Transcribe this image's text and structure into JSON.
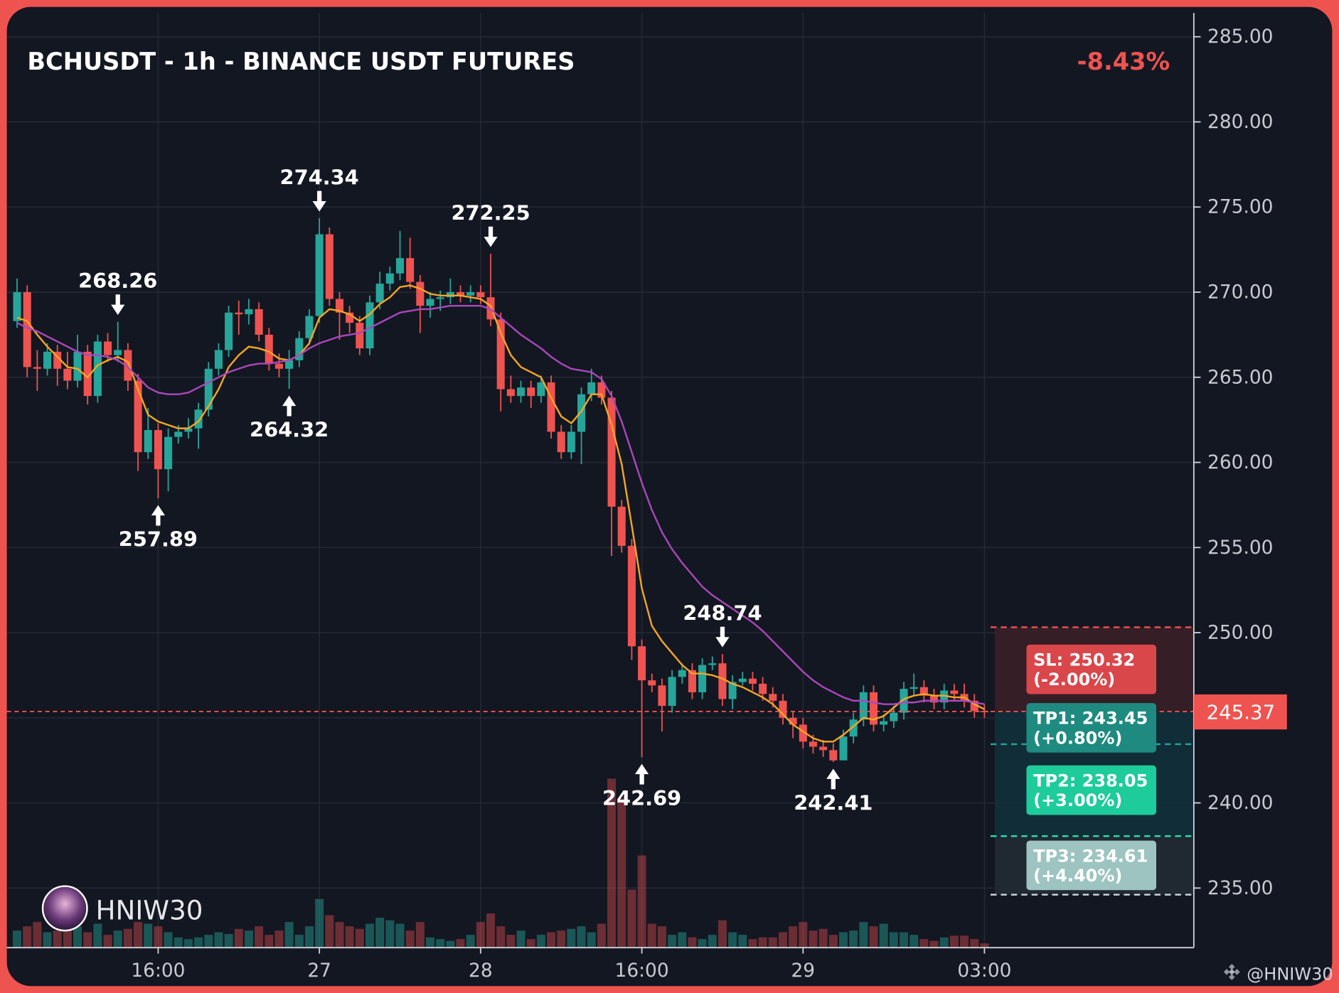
{
  "chart_data": {
    "type": "candlestick",
    "title": "BCHUSDT - 1h - BINANCE USDT FUTURES",
    "change": "-8.43%",
    "watermark": "HNIW30",
    "credit": "@HNIW30",
    "up_color": "#26a69a",
    "down_color": "#ef5350",
    "categories": [
      null,
      null,
      null,
      null,
      null,
      null,
      null,
      null,
      null,
      null,
      null,
      null,
      null,
      null,
      "16:00",
      null,
      null,
      null,
      null,
      null,
      null,
      null,
      null,
      null,
      null,
      null,
      null,
      null,
      null,
      null,
      "27",
      null,
      null,
      null,
      null,
      null,
      null,
      null,
      null,
      null,
      null,
      null,
      null,
      null,
      null,
      null,
      "28",
      null,
      null,
      null,
      null,
      null,
      null,
      null,
      null,
      null,
      null,
      null,
      null,
      null,
      null,
      null,
      "16:00",
      null,
      null,
      null,
      null,
      null,
      null,
      null,
      null,
      null,
      null,
      null,
      null,
      null,
      null,
      null,
      "29",
      null,
      null,
      null,
      null,
      null,
      null,
      null,
      null,
      null,
      null,
      null,
      null,
      null,
      null,
      null,
      null,
      null,
      "03:00"
    ],
    "open": [
      268.3,
      270.0,
      265.6,
      265.5,
      266.5,
      265.5,
      264.8,
      266.5,
      263.9,
      267.1,
      266.3,
      266.6,
      264.8,
      260.6,
      261.9,
      259.6,
      261.5,
      261.8,
      262.0,
      263.1,
      265.5,
      266.6,
      268.8,
      268.7,
      269.0,
      267.5,
      265.8,
      265.5,
      266.0,
      267.3,
      268.6,
      273.4,
      269.6,
      268.8,
      268.2,
      266.7,
      269.4,
      270.5,
      271.1,
      272.0,
      270.6,
      269.2,
      269.6,
      269.7,
      270.0,
      269.8,
      270.0,
      269.7,
      268.4,
      264.3,
      263.9,
      264.4,
      263.9,
      264.7,
      261.8,
      260.6,
      261.8,
      264.0,
      264.7,
      263.8,
      257.4,
      255.1,
      249.2,
      247.2,
      246.9,
      245.7,
      247.4,
      247.8,
      246.5,
      248.1,
      248.2,
      246.1,
      247.1,
      247.3,
      247.0,
      246.4,
      246.0,
      245.0,
      244.6,
      243.6,
      243.3,
      243.1,
      242.5,
      243.9,
      244.9,
      246.5,
      244.6,
      244.8,
      245.3,
      246.7,
      246.8,
      246.3,
      245.9,
      246.6,
      246.4,
      246.0,
      245.4
    ],
    "high": [
      270.8,
      270.4,
      266.6,
      267.0,
      266.9,
      266.5,
      267.5,
      266.9,
      267.5,
      267.6,
      268.26,
      267.0,
      265.2,
      263.2,
      262.3,
      262.0,
      262.2,
      262.6,
      263.5,
      265.9,
      267.0,
      269.2,
      269.5,
      269.6,
      269.4,
      267.9,
      266.4,
      266.6,
      267.7,
      269.0,
      274.34,
      273.8,
      270.0,
      269.2,
      268.6,
      269.8,
      271.2,
      271.5,
      273.6,
      273.2,
      271.0,
      270.0,
      270.1,
      270.8,
      270.4,
      270.4,
      270.4,
      272.25,
      268.8,
      265.1,
      264.8,
      264.8,
      265.1,
      265.1,
      262.2,
      262.2,
      264.4,
      265.5,
      265.1,
      264.2,
      257.8,
      255.5,
      249.6,
      247.6,
      247.3,
      247.8,
      248.2,
      248.2,
      248.5,
      248.6,
      248.74,
      247.5,
      247.7,
      247.7,
      247.4,
      246.8,
      246.4,
      245.4,
      245.0,
      244.0,
      243.7,
      243.5,
      244.3,
      245.3,
      246.9,
      246.9,
      245.2,
      245.7,
      247.1,
      247.6,
      247.2,
      246.7,
      247.0,
      247.0,
      247.0,
      246.4,
      245.8
    ],
    "low": [
      267.9,
      265.0,
      264.2,
      265.1,
      264.5,
      264.3,
      264.4,
      263.4,
      263.5,
      265.9,
      265.9,
      264.2,
      259.5,
      260.2,
      257.89,
      258.3,
      261.1,
      261.4,
      260.8,
      262.7,
      265.1,
      266.2,
      267.5,
      268.1,
      267.1,
      265.4,
      265.0,
      264.32,
      265.6,
      266.9,
      268.2,
      269.2,
      267.2,
      267.6,
      266.3,
      266.3,
      269.0,
      270.1,
      270.7,
      270.2,
      267.6,
      268.5,
      268.9,
      269.3,
      269.4,
      269.4,
      269.3,
      268.0,
      263.0,
      263.5,
      263.5,
      263.2,
      263.5,
      261.4,
      260.2,
      260.2,
      259.9,
      263.6,
      263.4,
      254.5,
      254.7,
      248.4,
      242.69,
      246.5,
      244.2,
      245.3,
      247.0,
      246.1,
      246.1,
      247.8,
      245.7,
      245.5,
      246.9,
      246.6,
      246.0,
      245.6,
      244.6,
      243.8,
      243.2,
      242.9,
      242.7,
      242.41,
      242.5,
      243.5,
      244.5,
      244.2,
      244.2,
      244.4,
      244.9,
      246.3,
      245.9,
      245.5,
      245.5,
      246.0,
      245.6,
      245.0,
      245.0
    ],
    "close": [
      270.0,
      265.6,
      265.5,
      266.5,
      265.5,
      264.8,
      266.5,
      263.9,
      267.1,
      266.3,
      266.6,
      264.8,
      260.6,
      261.9,
      259.6,
      261.5,
      261.8,
      262.0,
      263.1,
      265.5,
      266.6,
      268.8,
      268.7,
      269.0,
      267.5,
      265.8,
      265.5,
      266.0,
      267.3,
      268.6,
      273.4,
      269.6,
      268.8,
      268.2,
      266.7,
      269.4,
      270.5,
      271.1,
      272.0,
      270.6,
      269.2,
      269.6,
      269.7,
      270.0,
      269.8,
      270.0,
      269.7,
      268.4,
      264.3,
      263.9,
      264.4,
      263.9,
      264.7,
      261.8,
      260.6,
      261.8,
      264.0,
      264.7,
      263.8,
      257.4,
      255.1,
      249.2,
      247.2,
      246.9,
      245.7,
      247.4,
      247.8,
      246.5,
      248.1,
      248.2,
      246.1,
      247.1,
      247.3,
      247.0,
      246.4,
      246.0,
      245.0,
      244.6,
      243.6,
      243.3,
      243.1,
      242.5,
      243.9,
      244.9,
      246.5,
      244.6,
      244.8,
      245.3,
      246.7,
      246.8,
      246.3,
      245.9,
      246.6,
      246.4,
      246.0,
      245.4,
      245.37
    ],
    "volume": [
      20,
      25,
      30,
      18,
      20,
      22,
      25,
      18,
      28,
      15,
      20,
      22,
      30,
      28,
      25,
      18,
      12,
      10,
      12,
      15,
      18,
      16,
      22,
      20,
      25,
      15,
      20,
      30,
      15,
      25,
      57,
      38,
      30,
      25,
      22,
      28,
      35,
      32,
      28,
      20,
      30,
      12,
      10,
      8,
      10,
      15,
      30,
      40,
      25,
      15,
      20,
      10,
      15,
      18,
      20,
      22,
      25,
      18,
      28,
      198,
      175,
      68,
      108,
      28,
      25,
      15,
      18,
      12,
      10,
      15,
      32,
      18,
      15,
      10,
      12,
      12,
      18,
      25,
      30,
      20,
      22,
      15,
      18,
      20,
      30,
      25,
      28,
      18,
      18,
      15,
      10,
      8,
      12,
      14,
      14,
      10,
      5
    ],
    "overlays": [
      {
        "color": "#f5a623",
        "values": [
          268.5,
          268.3,
          267.5,
          266.8,
          266.2,
          265.6,
          265.5,
          265.0,
          265.7,
          266.0,
          266.2,
          265.9,
          264.3,
          262.8,
          262.4,
          262.2,
          262.0,
          262.0,
          262.4,
          263.3,
          264.3,
          265.6,
          266.3,
          266.8,
          266.7,
          266.5,
          266.1,
          266.0,
          266.3,
          267.0,
          268.5,
          269.0,
          268.9,
          268.7,
          268.3,
          268.7,
          269.3,
          269.7,
          270.3,
          270.4,
          270.2,
          269.9,
          269.8,
          269.8,
          269.8,
          269.7,
          269.6,
          269.2,
          267.6,
          266.3,
          265.6,
          265.3,
          265.0,
          263.8,
          262.7,
          262.3,
          263.0,
          264.0,
          264.0,
          262.2,
          259.9,
          256.3,
          252.6,
          250.4,
          249.5,
          248.8,
          248.1,
          247.6,
          247.6,
          247.5,
          247.3,
          247.0,
          246.8,
          246.5,
          246.2,
          245.8,
          245.2,
          244.6,
          244.2,
          243.8,
          243.6,
          243.6,
          244.0,
          244.5,
          245.0,
          244.9,
          245.1,
          245.6,
          246.1,
          246.3,
          246.4,
          246.3,
          246.3,
          246.2,
          246.2,
          245.8,
          245.5
        ]
      },
      {
        "color": "#ab47bc",
        "values": [
          268.2,
          267.9,
          267.7,
          267.4,
          267.1,
          266.8,
          266.5,
          266.3,
          266.3,
          266.2,
          266.0,
          265.6,
          265.0,
          264.4,
          264.1,
          264.0,
          264.0,
          264.1,
          264.4,
          264.7,
          265.0,
          265.3,
          265.5,
          265.7,
          265.8,
          265.8,
          265.9,
          266.0,
          266.3,
          266.7,
          267.0,
          267.2,
          267.4,
          267.5,
          267.6,
          267.9,
          268.2,
          268.5,
          268.8,
          268.9,
          269.0,
          269.0,
          269.1,
          269.2,
          269.2,
          269.2,
          269.2,
          269.0,
          268.5,
          268.0,
          267.5,
          267.1,
          266.7,
          266.2,
          265.8,
          265.5,
          265.4,
          265.3,
          264.9,
          263.9,
          262.4,
          260.6,
          258.8,
          257.2,
          255.9,
          254.9,
          254.1,
          253.4,
          252.7,
          252.2,
          251.8,
          251.4,
          251.0,
          250.6,
          250.1,
          249.5,
          248.9,
          248.3,
          247.7,
          247.2,
          246.8,
          246.5,
          246.2,
          246.0,
          246.0,
          245.9,
          245.8,
          245.8,
          245.9,
          245.9,
          246.0,
          246.0,
          246.0,
          246.0,
          246.0,
          245.9,
          245.8
        ]
      }
    ],
    "annotations": [
      {
        "value": 268.26,
        "type": "high"
      },
      {
        "value": 257.89,
        "type": "low"
      },
      {
        "value": 264.32,
        "type": "low"
      },
      {
        "value": 274.34,
        "type": "high"
      },
      {
        "value": 272.25,
        "type": "high"
      },
      {
        "value": 242.69,
        "type": "low"
      },
      {
        "value": 248.74,
        "type": "high"
      },
      {
        "value": 242.41,
        "type": "low"
      }
    ],
    "last_price": 245.37,
    "last_price_color": "#ef5350",
    "levels": [
      {
        "label": "SL: 250.32",
        "pct": "(-2.00%)",
        "value": 250.32,
        "color": "#ef5350",
        "box": "#d9474b",
        "zone": "#3a1f27"
      },
      {
        "label": "TP1: 243.45",
        "pct": "(+0.80%)",
        "value": 243.45,
        "color": "#26a69a",
        "box": "#1f8a80",
        "zone": "#12303a"
      },
      {
        "label": "TP2: 238.05",
        "pct": "(+3.00%)",
        "value": 238.05,
        "color": "#2de0b0",
        "box": "#1ecb9b",
        "zone": "#12303a"
      },
      {
        "label": "TP3: 234.61",
        "pct": "(+4.40%)",
        "value": 234.61,
        "color": "#cfd8dc",
        "box": "#9dc4c0",
        "zone": "#222a34"
      }
    ],
    "ylim": [
      231.5,
      286.4
    ],
    "yticks": [
      {
        "value": 235,
        "label": "235.00"
      },
      {
        "value": 240,
        "label": "240.00"
      },
      {
        "value": 245,
        "label": "245.00"
      },
      {
        "value": 250,
        "label": "250.00"
      },
      {
        "value": 255,
        "label": "255.00"
      },
      {
        "value": 260,
        "label": "260.00"
      },
      {
        "value": 265,
        "label": "265.00"
      },
      {
        "value": 270,
        "label": "270.00"
      },
      {
        "value": 275,
        "label": "275.00"
      },
      {
        "value": 280,
        "label": "280.00"
      },
      {
        "value": 285,
        "label": "285.00"
      }
    ],
    "grid": true
  }
}
